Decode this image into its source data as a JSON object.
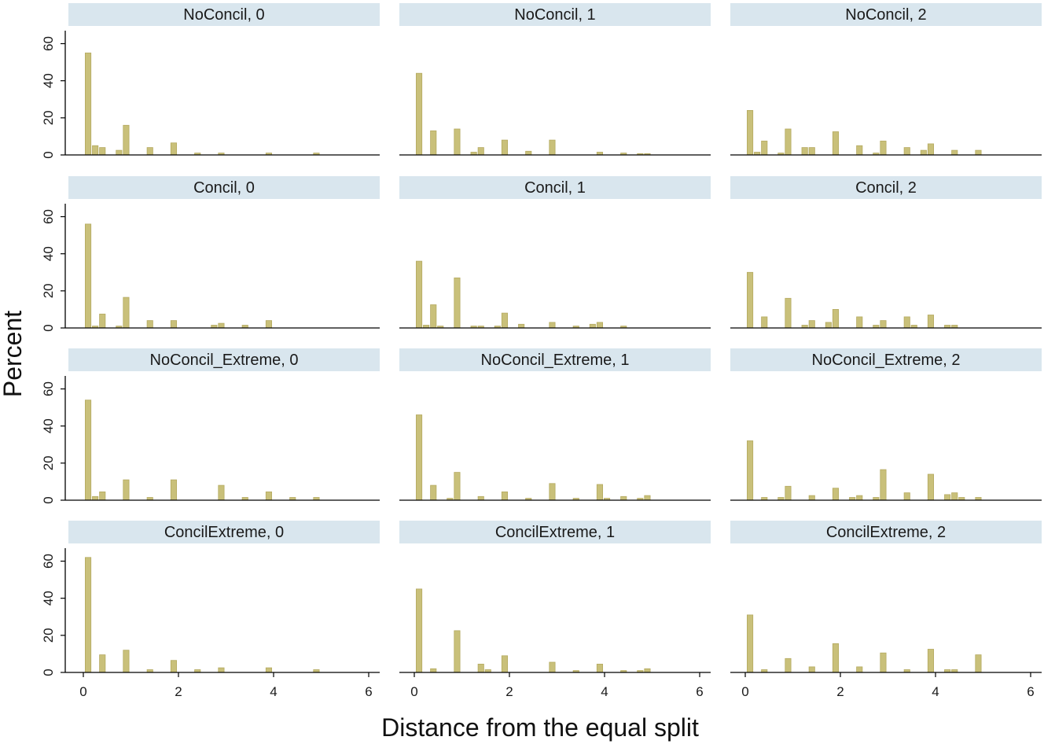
{
  "chart_data": {
    "type": "bar",
    "layout": "facet-grid 4x3",
    "xlabel": "Distance from the equal split",
    "ylabel": "Percent",
    "xlim": [
      -0.3,
      6.1
    ],
    "ylim": [
      0,
      67
    ],
    "xticks": [
      0,
      2,
      4,
      6
    ],
    "yticks": [
      0,
      20,
      40,
      60
    ],
    "bin_width": 0.2,
    "colors": {
      "bar": "#C9C07A",
      "bar_edge": "#B5AA60",
      "strip": "#D9E6EE",
      "axis": "#000000"
    },
    "panels": [
      {
        "title": "NoConcil, 0",
        "bars": [
          {
            "x": 0.1,
            "y": 55
          },
          {
            "x": 0.25,
            "y": 5
          },
          {
            "x": 0.4,
            "y": 4
          },
          {
            "x": 0.75,
            "y": 2.5
          },
          {
            "x": 0.9,
            "y": 16
          },
          {
            "x": 1.4,
            "y": 4
          },
          {
            "x": 1.9,
            "y": 6.5
          },
          {
            "x": 2.4,
            "y": 1
          },
          {
            "x": 2.9,
            "y": 1
          },
          {
            "x": 3.9,
            "y": 1
          },
          {
            "x": 4.9,
            "y": 1
          }
        ]
      },
      {
        "title": "NoConcil, 1",
        "bars": [
          {
            "x": 0.1,
            "y": 44
          },
          {
            "x": 0.4,
            "y": 13
          },
          {
            "x": 0.9,
            "y": 14
          },
          {
            "x": 1.25,
            "y": 1.5
          },
          {
            "x": 1.4,
            "y": 4
          },
          {
            "x": 1.9,
            "y": 8
          },
          {
            "x": 2.4,
            "y": 2
          },
          {
            "x": 2.9,
            "y": 8
          },
          {
            "x": 3.9,
            "y": 1.5
          },
          {
            "x": 4.4,
            "y": 1
          },
          {
            "x": 4.75,
            "y": 0.7
          },
          {
            "x": 4.9,
            "y": 0.7
          }
        ]
      },
      {
        "title": "NoConcil, 2",
        "bars": [
          {
            "x": 0.1,
            "y": 24
          },
          {
            "x": 0.25,
            "y": 1.5
          },
          {
            "x": 0.4,
            "y": 7.5
          },
          {
            "x": 0.75,
            "y": 1
          },
          {
            "x": 0.9,
            "y": 14
          },
          {
            "x": 1.25,
            "y": 4
          },
          {
            "x": 1.4,
            "y": 4
          },
          {
            "x": 1.9,
            "y": 12.5
          },
          {
            "x": 2.4,
            "y": 5
          },
          {
            "x": 2.75,
            "y": 1
          },
          {
            "x": 2.9,
            "y": 7.5
          },
          {
            "x": 3.4,
            "y": 4
          },
          {
            "x": 3.75,
            "y": 2.5
          },
          {
            "x": 3.9,
            "y": 6
          },
          {
            "x": 4.4,
            "y": 2.5
          },
          {
            "x": 4.9,
            "y": 2.5
          }
        ]
      },
      {
        "title": "Concil, 0",
        "bars": [
          {
            "x": 0.1,
            "y": 56
          },
          {
            "x": 0.25,
            "y": 1
          },
          {
            "x": 0.4,
            "y": 7.5
          },
          {
            "x": 0.75,
            "y": 1
          },
          {
            "x": 0.9,
            "y": 16.5
          },
          {
            "x": 1.4,
            "y": 4
          },
          {
            "x": 1.9,
            "y": 4
          },
          {
            "x": 2.75,
            "y": 1.5
          },
          {
            "x": 2.9,
            "y": 2.5
          },
          {
            "x": 3.4,
            "y": 1.5
          },
          {
            "x": 3.9,
            "y": 4
          }
        ]
      },
      {
        "title": "Concil, 1",
        "bars": [
          {
            "x": 0.1,
            "y": 36
          },
          {
            "x": 0.25,
            "y": 1.5
          },
          {
            "x": 0.4,
            "y": 12.5
          },
          {
            "x": 0.55,
            "y": 1
          },
          {
            "x": 0.9,
            "y": 27
          },
          {
            "x": 1.25,
            "y": 1
          },
          {
            "x": 1.4,
            "y": 1
          },
          {
            "x": 1.75,
            "y": 1
          },
          {
            "x": 1.9,
            "y": 8
          },
          {
            "x": 2.25,
            "y": 2
          },
          {
            "x": 2.9,
            "y": 3
          },
          {
            "x": 3.4,
            "y": 1
          },
          {
            "x": 3.75,
            "y": 2
          },
          {
            "x": 3.9,
            "y": 3
          },
          {
            "x": 4.4,
            "y": 1
          }
        ]
      },
      {
        "title": "Concil, 2",
        "bars": [
          {
            "x": 0.1,
            "y": 30
          },
          {
            "x": 0.4,
            "y": 6
          },
          {
            "x": 0.9,
            "y": 16
          },
          {
            "x": 1.25,
            "y": 1.5
          },
          {
            "x": 1.4,
            "y": 4
          },
          {
            "x": 1.75,
            "y": 3
          },
          {
            "x": 1.9,
            "y": 10
          },
          {
            "x": 2.4,
            "y": 6
          },
          {
            "x": 2.75,
            "y": 1.5
          },
          {
            "x": 2.9,
            "y": 4
          },
          {
            "x": 3.4,
            "y": 6
          },
          {
            "x": 3.55,
            "y": 1.5
          },
          {
            "x": 3.9,
            "y": 7
          },
          {
            "x": 4.25,
            "y": 1.5
          },
          {
            "x": 4.4,
            "y": 1.5
          }
        ]
      },
      {
        "title": "NoConcil_Extreme, 0",
        "bars": [
          {
            "x": 0.1,
            "y": 54
          },
          {
            "x": 0.25,
            "y": 2
          },
          {
            "x": 0.4,
            "y": 4.5
          },
          {
            "x": 0.9,
            "y": 11
          },
          {
            "x": 1.4,
            "y": 1.5
          },
          {
            "x": 1.9,
            "y": 11
          },
          {
            "x": 2.9,
            "y": 8
          },
          {
            "x": 3.4,
            "y": 1.5
          },
          {
            "x": 3.9,
            "y": 4.5
          },
          {
            "x": 4.4,
            "y": 1.5
          },
          {
            "x": 4.9,
            "y": 1.5
          }
        ]
      },
      {
        "title": "NoConcil_Extreme, 1",
        "bars": [
          {
            "x": 0.1,
            "y": 46
          },
          {
            "x": 0.4,
            "y": 8
          },
          {
            "x": 0.75,
            "y": 1
          },
          {
            "x": 0.9,
            "y": 15
          },
          {
            "x": 1.4,
            "y": 2
          },
          {
            "x": 1.9,
            "y": 4.5
          },
          {
            "x": 2.4,
            "y": 1
          },
          {
            "x": 2.9,
            "y": 9
          },
          {
            "x": 3.4,
            "y": 1
          },
          {
            "x": 3.9,
            "y": 8.5
          },
          {
            "x": 4.05,
            "y": 1
          },
          {
            "x": 4.4,
            "y": 2
          },
          {
            "x": 4.75,
            "y": 1
          },
          {
            "x": 4.9,
            "y": 2.5
          }
        ]
      },
      {
        "title": "NoConcil_Extreme, 2",
        "bars": [
          {
            "x": 0.1,
            "y": 32
          },
          {
            "x": 0.4,
            "y": 1.5
          },
          {
            "x": 0.75,
            "y": 1.5
          },
          {
            "x": 0.9,
            "y": 7.5
          },
          {
            "x": 1.4,
            "y": 2.5
          },
          {
            "x": 1.9,
            "y": 6.5
          },
          {
            "x": 2.25,
            "y": 1.5
          },
          {
            "x": 2.4,
            "y": 2.5
          },
          {
            "x": 2.75,
            "y": 1.5
          },
          {
            "x": 2.9,
            "y": 16.5
          },
          {
            "x": 3.4,
            "y": 4
          },
          {
            "x": 3.9,
            "y": 14
          },
          {
            "x": 4.25,
            "y": 3
          },
          {
            "x": 4.4,
            "y": 4
          },
          {
            "x": 4.55,
            "y": 1.5
          },
          {
            "x": 4.9,
            "y": 1.5
          }
        ]
      },
      {
        "title": "ConcilExtreme, 0",
        "bars": [
          {
            "x": 0.1,
            "y": 62
          },
          {
            "x": 0.4,
            "y": 9.5
          },
          {
            "x": 0.9,
            "y": 12
          },
          {
            "x": 1.4,
            "y": 1.5
          },
          {
            "x": 1.9,
            "y": 6.5
          },
          {
            "x": 2.4,
            "y": 1.5
          },
          {
            "x": 2.9,
            "y": 2.5
          },
          {
            "x": 3.9,
            "y": 2.5
          },
          {
            "x": 4.9,
            "y": 1.5
          }
        ]
      },
      {
        "title": "ConcilExtreme, 1",
        "bars": [
          {
            "x": 0.1,
            "y": 45
          },
          {
            "x": 0.4,
            "y": 2
          },
          {
            "x": 0.9,
            "y": 22.5
          },
          {
            "x": 1.4,
            "y": 4.5
          },
          {
            "x": 1.55,
            "y": 1.5
          },
          {
            "x": 1.9,
            "y": 9
          },
          {
            "x": 2.9,
            "y": 5.5
          },
          {
            "x": 3.4,
            "y": 1
          },
          {
            "x": 3.9,
            "y": 4.5
          },
          {
            "x": 4.4,
            "y": 1
          },
          {
            "x": 4.75,
            "y": 1
          },
          {
            "x": 4.9,
            "y": 2
          }
        ]
      },
      {
        "title": "ConcilExtreme, 2",
        "bars": [
          {
            "x": 0.1,
            "y": 31
          },
          {
            "x": 0.4,
            "y": 1.5
          },
          {
            "x": 0.9,
            "y": 7.5
          },
          {
            "x": 1.4,
            "y": 3
          },
          {
            "x": 1.9,
            "y": 15.5
          },
          {
            "x": 2.4,
            "y": 3
          },
          {
            "x": 2.9,
            "y": 10.5
          },
          {
            "x": 3.4,
            "y": 1.5
          },
          {
            "x": 3.9,
            "y": 12.5
          },
          {
            "x": 4.25,
            "y": 1.5
          },
          {
            "x": 4.4,
            "y": 1.5
          },
          {
            "x": 4.9,
            "y": 9.5
          }
        ]
      }
    ]
  }
}
